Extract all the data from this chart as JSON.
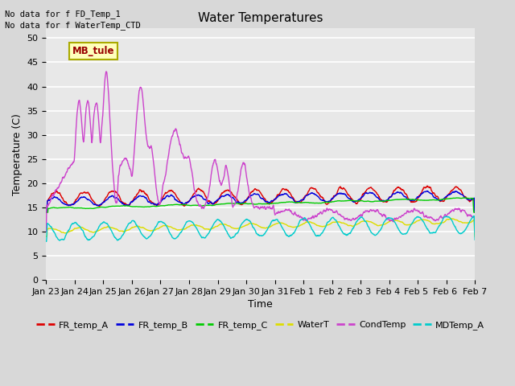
{
  "title": "Water Temperatures",
  "xlabel": "Time",
  "ylabel": "Temperature (C)",
  "ylim": [
    0,
    52
  ],
  "yticks": [
    0,
    5,
    10,
    15,
    20,
    25,
    30,
    35,
    40,
    45,
    50
  ],
  "bg_color": "#d8d8d8",
  "plot_bg_color": "#e8e8e8",
  "grid_color": "#ffffff",
  "annotations": [
    "No data for f FD_Temp_1",
    "No data for f WaterTemp_CTD"
  ],
  "legend_box_label": "MB_tule",
  "legend_entries": [
    {
      "label": "FR_temp_A",
      "color": "#dd0000"
    },
    {
      "label": "FR_temp_B",
      "color": "#0000dd"
    },
    {
      "label": "FR_temp_C",
      "color": "#00cc00"
    },
    {
      "label": "WaterT",
      "color": "#dddd00"
    },
    {
      "label": "CondTemp",
      "color": "#cc44cc"
    },
    {
      "label": "MDTemp_A",
      "color": "#00cccc"
    }
  ],
  "x_tick_labels": [
    "Jan 23",
    "Jan 24",
    "Jan 25",
    "Jan 26",
    "Jan 27",
    "Jan 28",
    "Jan 29",
    "Jan 30",
    "Jan 31",
    "Feb 1 ",
    "Feb 2 ",
    "Feb 3 ",
    "Feb 4 ",
    "Feb 5 ",
    "Feb 6 ",
    "Feb 7"
  ]
}
